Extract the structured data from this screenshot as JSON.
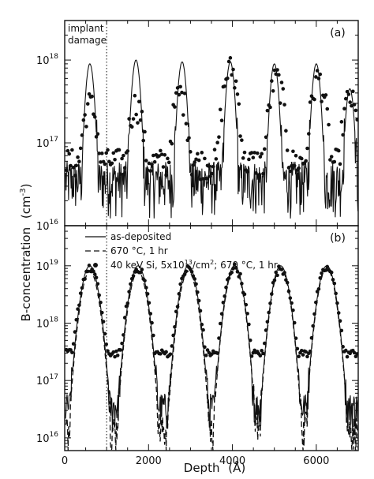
{
  "figure": {
    "ylabel_main": "B-concentration",
    "ylabel_unit": "(cm",
    "ylabel_exp": "-3",
    "ylabel_close": ")",
    "xlabel_main": "Depth",
    "xlabel_unit": "(Å)"
  },
  "chart_data": [
    {
      "type": "line",
      "panel_label": "(a)",
      "annotation": [
        "implant",
        "damage"
      ],
      "y_scale": "log",
      "ylim": [
        1e+16,
        3e+18
      ],
      "xlim": [
        0,
        7000
      ],
      "y_ticks": [
        {
          "value": 1e+16,
          "base": "10",
          "exp": "16"
        },
        {
          "value": 1e+17,
          "base": "10",
          "exp": "17"
        },
        {
          "value": 1e+18,
          "base": "10",
          "exp": "18"
        }
      ],
      "marker_depth": 1000,
      "series": [
        {
          "style": "solid",
          "peaks": [
            {
              "x": 600,
              "y": 9e+17
            },
            {
              "x": 1700,
              "y": 1e+18
            },
            {
              "x": 2800,
              "y": 9.5e+17
            },
            {
              "x": 3950,
              "y": 9.5e+17
            },
            {
              "x": 5000,
              "y": 9e+17
            },
            {
              "x": 6000,
              "y": 9e+17
            },
            {
              "x": 6800,
              "y": 4.5e+17
            }
          ],
          "background": 3e+16
        },
        {
          "style": "markers",
          "peaks": [
            {
              "x": 600,
              "y": 3e+17
            },
            {
              "x": 1700,
              "y": 3e+17
            },
            {
              "x": 2750,
              "y": 4e+17
            },
            {
              "x": 3950,
              "y": 8e+17
            },
            {
              "x": 5050,
              "y": 6e+17
            },
            {
              "x": 6050,
              "y": 6e+17
            },
            {
              "x": 6800,
              "y": 3.5e+17
            }
          ],
          "background": 6e+16
        }
      ]
    },
    {
      "type": "line",
      "panel_label": "(b)",
      "y_scale": "log",
      "ylim": [
        6000000000000000.0,
        5e+19
      ],
      "xlim": [
        0,
        7000
      ],
      "x_ticks": [
        0,
        2000,
        4000,
        6000
      ],
      "x_tick_labels": [
        "0",
        "2000",
        "4000",
        "6000"
      ],
      "y_ticks": [
        {
          "value": 1e+16,
          "base": "10",
          "exp": "16"
        },
        {
          "value": 1e+17,
          "base": "10",
          "exp": "17"
        },
        {
          "value": 1e+18,
          "base": "10",
          "exp": "18"
        },
        {
          "value": 1e+19,
          "base": "10",
          "exp": "19"
        }
      ],
      "marker_depth": 1000,
      "legend": {
        "solid_label": "as-deposited",
        "dashed_label": "670 °C, 1 hr",
        "markers_label_a": "40 keV Si, 5x10",
        "markers_label_exp": "13",
        "markers_label_b": "/cm",
        "markers_label_exp2": "2",
        "markers_label_c": "; 670 °C, 1 hr"
      },
      "series": [
        {
          "style": "solid",
          "peaks": [
            {
              "x": 600,
              "y": 1e+19
            },
            {
              "x": 1750,
              "y": 1e+19
            },
            {
              "x": 2950,
              "y": 1e+19
            },
            {
              "x": 4050,
              "y": 1e+19
            },
            {
              "x": 5150,
              "y": 1e+19
            },
            {
              "x": 6250,
              "y": 1e+19
            }
          ],
          "background": 3e+16
        },
        {
          "style": "dashed",
          "peaks": [
            {
              "x": 600,
              "y": 8e+18
            },
            {
              "x": 1750,
              "y": 8e+18
            },
            {
              "x": 2950,
              "y": 8e+18
            },
            {
              "x": 4050,
              "y": 9e+18
            },
            {
              "x": 5150,
              "y": 9e+18
            },
            {
              "x": 6250,
              "y": 9e+18
            }
          ],
          "background": 1.2e+16
        },
        {
          "style": "markers",
          "peaks": [
            {
              "x": 600,
              "y": 9e+18
            },
            {
              "x": 1750,
              "y": 9e+18
            },
            {
              "x": 2950,
              "y": 9e+18
            },
            {
              "x": 4050,
              "y": 9.5e+18
            },
            {
              "x": 5150,
              "y": 9e+18
            },
            {
              "x": 6250,
              "y": 9e+18
            }
          ],
          "background": 3e+17
        }
      ]
    }
  ]
}
